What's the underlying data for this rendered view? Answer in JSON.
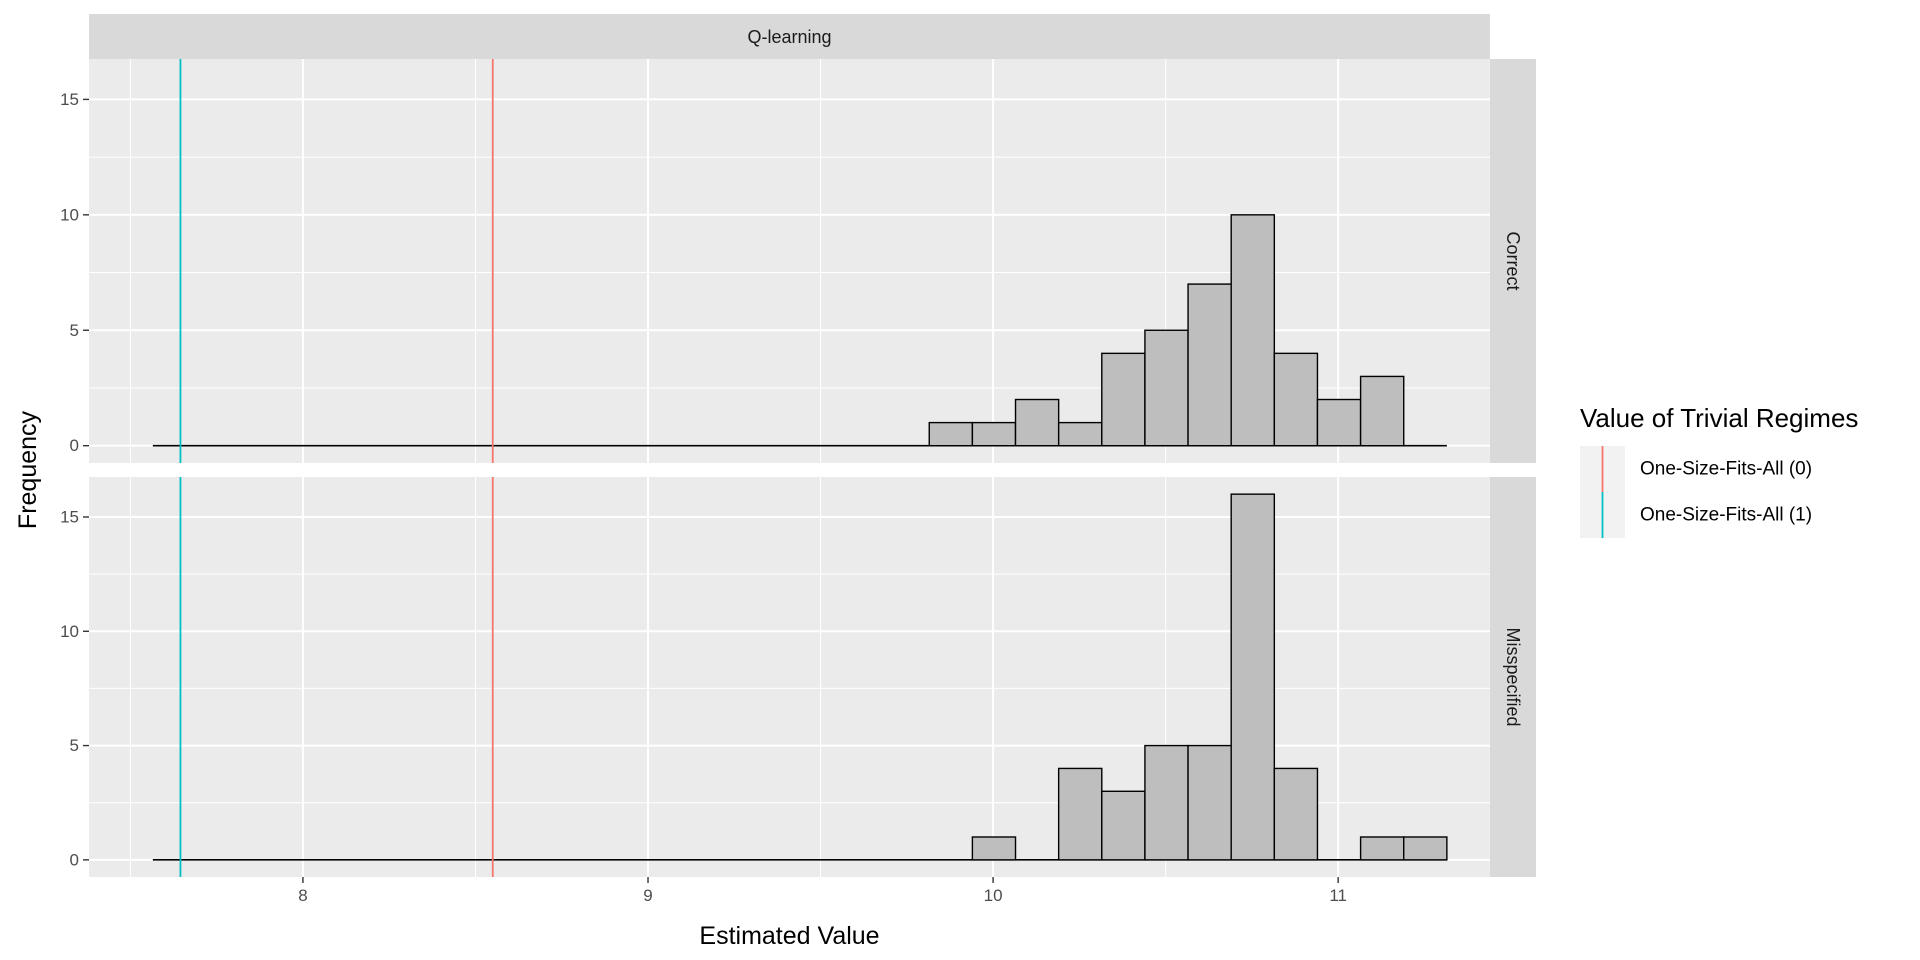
{
  "chart_data": {
    "type": "bar",
    "facet_col_label": "Q-learning",
    "xlabel": "Estimated Value",
    "ylabel": "Frequency",
    "xlim": [
      7.38,
      11.44
    ],
    "ylim": [
      -0.75,
      16.75
    ],
    "x_ticks": [
      8,
      9,
      10,
      11
    ],
    "y_ticks": [
      0,
      5,
      10,
      15
    ],
    "bin_width": 0.125,
    "grid": true,
    "legend": {
      "title": "Value of Trivial Regimes",
      "position": "right",
      "entries": [
        {
          "label": "One-Size-Fits-All (0)",
          "color": "#F8766D"
        },
        {
          "label": "One-Size-Fits-All (1)",
          "color": "#00BFC4"
        }
      ]
    },
    "reference_lines": [
      {
        "label": "One-Size-Fits-All (0)",
        "x": 8.55,
        "color": "#F8766D"
      },
      {
        "label": "One-Size-Fits-All (1)",
        "x": 7.645,
        "color": "#00BFC4"
      }
    ],
    "panels": [
      {
        "label": "Correct",
        "baseline_range": [
          7.565,
          11.315
        ],
        "bins": [
          {
            "x0": 9.815,
            "x1": 9.94,
            "count": 1
          },
          {
            "x0": 9.94,
            "x1": 10.065,
            "count": 1
          },
          {
            "x0": 10.065,
            "x1": 10.19,
            "count": 2
          },
          {
            "x0": 10.19,
            "x1": 10.315,
            "count": 1
          },
          {
            "x0": 10.315,
            "x1": 10.44,
            "count": 4
          },
          {
            "x0": 10.44,
            "x1": 10.565,
            "count": 5
          },
          {
            "x0": 10.565,
            "x1": 10.69,
            "count": 7
          },
          {
            "x0": 10.69,
            "x1": 10.815,
            "count": 10
          },
          {
            "x0": 10.815,
            "x1": 10.94,
            "count": 4
          },
          {
            "x0": 10.94,
            "x1": 11.065,
            "count": 2
          },
          {
            "x0": 11.065,
            "x1": 11.19,
            "count": 3
          }
        ]
      },
      {
        "label": "Misspecified",
        "baseline_range": [
          7.565,
          11.315
        ],
        "bins": [
          {
            "x0": 9.94,
            "x1": 10.065,
            "count": 1
          },
          {
            "x0": 10.19,
            "x1": 10.315,
            "count": 4
          },
          {
            "x0": 10.315,
            "x1": 10.44,
            "count": 3
          },
          {
            "x0": 10.44,
            "x1": 10.565,
            "count": 5
          },
          {
            "x0": 10.565,
            "x1": 10.69,
            "count": 5
          },
          {
            "x0": 10.69,
            "x1": 10.815,
            "count": 16
          },
          {
            "x0": 10.815,
            "x1": 10.94,
            "count": 4
          },
          {
            "x0": 11.065,
            "x1": 11.19,
            "count": 1
          },
          {
            "x0": 11.19,
            "x1": 11.315,
            "count": 1
          }
        ]
      }
    ]
  }
}
